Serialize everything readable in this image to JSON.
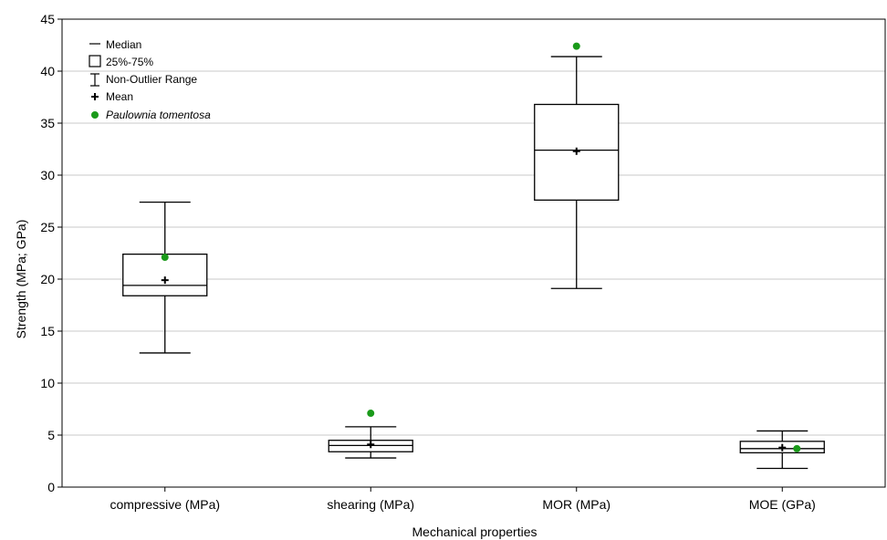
{
  "chart_data": {
    "type": "boxplot",
    "xlabel": "Mechanical properties",
    "ylabel": "Strength (MPa; GPa)",
    "ylim": [
      0,
      45
    ],
    "yticks": [
      0,
      5,
      10,
      15,
      20,
      25,
      30,
      35,
      40,
      45
    ],
    "grid": "horizontal",
    "legend_placement": "top-left",
    "legend": {
      "median": "Median",
      "box": "25%-75%",
      "whisker": "Non-Outlier Range",
      "mean": "Mean",
      "point": "Paulownia tomentosa"
    },
    "colors": {
      "point": "#1a9a1a",
      "grid": "#c8c8c8",
      "axis": "#000000"
    },
    "categories": [
      "compressive (MPa)",
      "shearing (MPa)",
      "MOR (MPa)",
      "MOE (GPa)"
    ],
    "series": [
      {
        "whisker_min": 12.9,
        "q1": 18.4,
        "median": 19.4,
        "q3": 22.4,
        "whisker_max": 27.4,
        "mean": 19.9,
        "point": 22.1
      },
      {
        "whisker_min": 2.8,
        "q1": 3.4,
        "median": 4.0,
        "q3": 4.5,
        "whisker_max": 5.8,
        "mean": 4.1,
        "point": 7.1
      },
      {
        "whisker_min": 19.1,
        "q1": 27.6,
        "median": 32.4,
        "q3": 36.8,
        "whisker_max": 41.4,
        "mean": 32.3,
        "point": 42.4
      },
      {
        "whisker_min": 1.8,
        "q1": 3.3,
        "median": 3.7,
        "q3": 4.4,
        "whisker_max": 5.4,
        "mean": 3.8,
        "point": 3.7
      }
    ]
  }
}
